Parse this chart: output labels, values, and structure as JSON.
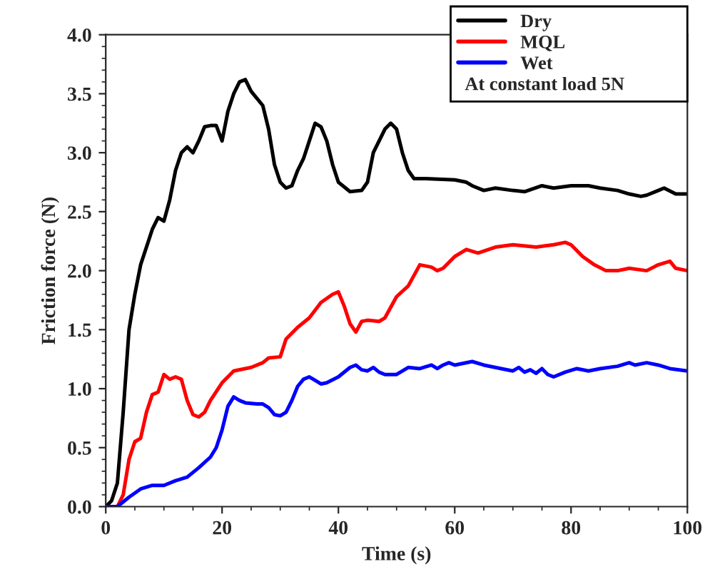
{
  "chart_data": {
    "type": "line",
    "xlabel": "Time (s)",
    "ylabel": "Friction force (N)",
    "xlim": [
      0,
      100
    ],
    "xticks": [
      0,
      20,
      40,
      60,
      80,
      100
    ],
    "ylim": [
      0,
      4
    ],
    "yticks": [
      {
        "value": 0,
        "label": "0.0"
      },
      0.5,
      {
        "value": 1,
        "label": "1.0"
      },
      1.5,
      {
        "value": 2,
        "label": "2.0"
      },
      2.5,
      {
        "value": 3,
        "label": "3.0"
      },
      3.5,
      {
        "value": 4,
        "label": "4.0"
      }
    ],
    "legend": "top right",
    "grid": false,
    "marker": "none",
    "line_style": "solid",
    "annotations": [
      "At constant load 5N"
    ],
    "series": [
      {
        "name": "Dry",
        "color": "#000000",
        "x": [
          0,
          1,
          2,
          3,
          4,
          5,
          6,
          7,
          8,
          9,
          10,
          11,
          12,
          13,
          14,
          15,
          16,
          17,
          18,
          19,
          20,
          21,
          22,
          23,
          24,
          25,
          27,
          28,
          29,
          30,
          31,
          32,
          33,
          34,
          36,
          37,
          38,
          39,
          40,
          42,
          44,
          45,
          46,
          48,
          49,
          50,
          51,
          52,
          53,
          55,
          60,
          62,
          63,
          65,
          67,
          70,
          72,
          75,
          77,
          80,
          83,
          85,
          88,
          90,
          92,
          93,
          95,
          96,
          98,
          100
        ],
        "values": [
          0,
          0.05,
          0.2,
          0.8,
          1.5,
          1.8,
          2.05,
          2.2,
          2.35,
          2.45,
          2.42,
          2.6,
          2.85,
          3.0,
          3.05,
          3.0,
          3.1,
          3.22,
          3.23,
          3.23,
          3.1,
          3.35,
          3.5,
          3.6,
          3.62,
          3.52,
          3.4,
          3.2,
          2.9,
          2.75,
          2.7,
          2.72,
          2.85,
          2.95,
          3.25,
          3.22,
          3.1,
          2.9,
          2.75,
          2.67,
          2.68,
          2.75,
          3.0,
          3.2,
          3.25,
          3.2,
          3.0,
          2.85,
          2.78,
          2.78,
          2.77,
          2.75,
          2.72,
          2.68,
          2.7,
          2.68,
          2.67,
          2.72,
          2.7,
          2.72,
          2.72,
          2.7,
          2.68,
          2.65,
          2.63,
          2.64,
          2.68,
          2.7,
          2.65,
          2.65
        ]
      },
      {
        "name": "MQL",
        "color": "#ff0000",
        "x": [
          0,
          2,
          3,
          4,
          5,
          6,
          7,
          8,
          9,
          10,
          11,
          12,
          13,
          14,
          15,
          16,
          17,
          18,
          20,
          22,
          25,
          27,
          28,
          30,
          31,
          33,
          35,
          37,
          39,
          40,
          41,
          42,
          43,
          44,
          45,
          47,
          48,
          50,
          52,
          54,
          56,
          57,
          58,
          60,
          62,
          64,
          67,
          70,
          74,
          77,
          79,
          80,
          82,
          84,
          86,
          88,
          90,
          93,
          95,
          97,
          98,
          100
        ],
        "values": [
          0,
          0,
          0.1,
          0.4,
          0.55,
          0.58,
          0.8,
          0.95,
          0.97,
          1.12,
          1.08,
          1.1,
          1.08,
          0.9,
          0.78,
          0.76,
          0.8,
          0.9,
          1.05,
          1.15,
          1.18,
          1.22,
          1.26,
          1.27,
          1.42,
          1.52,
          1.6,
          1.73,
          1.8,
          1.82,
          1.7,
          1.55,
          1.48,
          1.57,
          1.58,
          1.57,
          1.6,
          1.78,
          1.87,
          2.05,
          2.03,
          2.0,
          2.02,
          2.12,
          2.18,
          2.15,
          2.2,
          2.22,
          2.2,
          2.22,
          2.24,
          2.22,
          2.12,
          2.05,
          2.0,
          2.0,
          2.02,
          2.0,
          2.05,
          2.08,
          2.02,
          2.0
        ]
      },
      {
        "name": "Wet",
        "color": "#0000ff",
        "x": [
          0,
          2,
          4,
          6,
          8,
          10,
          12,
          14,
          16,
          18,
          19,
          20,
          21,
          22,
          23,
          24,
          26,
          27,
          28,
          29,
          30,
          31,
          32,
          33,
          34,
          35,
          36,
          37,
          38,
          40,
          42,
          43,
          44,
          45,
          46,
          47,
          48,
          50,
          52,
          54,
          56,
          57,
          58,
          59,
          60,
          63,
          65,
          68,
          70,
          71,
          72,
          73,
          74,
          75,
          76,
          77,
          79,
          81,
          83,
          85,
          88,
          90,
          91,
          93,
          95,
          97,
          100
        ],
        "values": [
          0,
          0,
          0.08,
          0.15,
          0.18,
          0.18,
          0.22,
          0.25,
          0.33,
          0.42,
          0.5,
          0.65,
          0.85,
          0.93,
          0.9,
          0.88,
          0.87,
          0.87,
          0.84,
          0.78,
          0.77,
          0.8,
          0.9,
          1.02,
          1.08,
          1.1,
          1.07,
          1.04,
          1.05,
          1.1,
          1.18,
          1.2,
          1.16,
          1.15,
          1.18,
          1.14,
          1.12,
          1.12,
          1.18,
          1.17,
          1.2,
          1.17,
          1.2,
          1.22,
          1.2,
          1.23,
          1.2,
          1.17,
          1.15,
          1.18,
          1.14,
          1.16,
          1.13,
          1.17,
          1.12,
          1.1,
          1.14,
          1.17,
          1.15,
          1.17,
          1.19,
          1.22,
          1.2,
          1.22,
          1.2,
          1.17,
          1.15
        ]
      }
    ]
  }
}
